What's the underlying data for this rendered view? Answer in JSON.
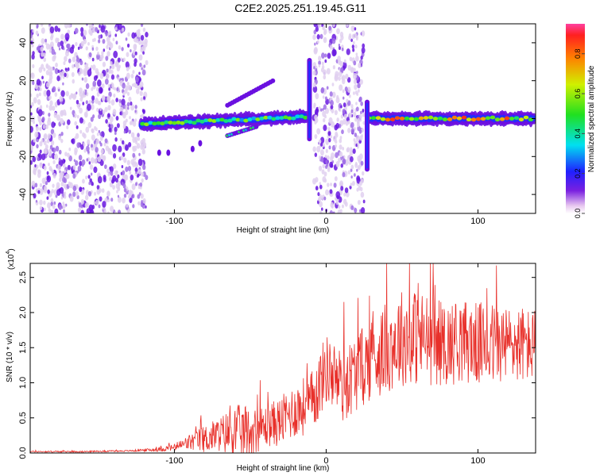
{
  "title": "C2E2.2025.251.19.45.G11",
  "colors": {
    "snr_line": "#e8302a",
    "spectro_low": "#d9c6ee",
    "spectro_mid": "#6a1ee0",
    "spectro_cyan": "#00e0e6",
    "spectro_green": "#30e040",
    "spectro_peak": "#ff2020"
  },
  "chart_data": [
    {
      "type": "heatmap",
      "xlabel": "Height of straight line (km)",
      "ylabel": "Frequency (Hz)",
      "xlim": [
        -195,
        138
      ],
      "ylim": [
        -50,
        50
      ],
      "xticks": [
        -100,
        0,
        100
      ],
      "yticks": [
        -40,
        -20,
        0,
        20,
        40
      ],
      "colorbar": {
        "label": "Normalized spectral amplitude",
        "range": [
          0.0,
          0.95
        ],
        "ticks": [
          0.0,
          0.2,
          0.4,
          0.6,
          0.8
        ],
        "tick_labels": [
          "0.0",
          "0.2",
          "0.4",
          "0.6",
          "0.8"
        ]
      },
      "features": [
        {
          "name": "broadband noise region",
          "x_range": [
            -195,
            -118
          ],
          "freq_range": [
            -50,
            50
          ],
          "amplitude": 0.12
        },
        {
          "name": "broadband noise region",
          "x_range": [
            -8,
            25
          ],
          "freq_range": [
            -50,
            50
          ],
          "amplitude": 0.12
        },
        {
          "name": "main carrier trace",
          "x_range": [
            -122,
            -13
          ],
          "freq_start": -3,
          "freq_end": 1,
          "amplitude": 0.45
        },
        {
          "name": "main carrier trace",
          "x_range": [
            27,
            138
          ],
          "freq": 0,
          "amplitude": 0.9
        },
        {
          "name": "upper branch",
          "x_range": [
            -65,
            -35
          ],
          "freq_start": 7,
          "freq_end": 20,
          "amplitude": 0.15
        },
        {
          "name": "lower branch",
          "x_range": [
            -65,
            -45
          ],
          "freq_start": -9,
          "freq_end": -4,
          "amplitude": 0.35
        },
        {
          "name": "spike",
          "x": -11,
          "freq_range": [
            -12,
            32
          ],
          "amplitude": 0.2
        },
        {
          "name": "spike",
          "x": 27,
          "freq_range": [
            -28,
            10
          ],
          "amplitude": 0.2
        }
      ]
    },
    {
      "type": "line",
      "xlabel": "Height of straight line (km)",
      "ylabel": "SNR (10 * v/v)",
      "y_scale_label": "(x10",
      "y_scale_exponent": "4",
      "xlim": [
        -195,
        138
      ],
      "ylim": [
        0.0,
        2.7
      ],
      "xticks": [
        -100,
        0,
        100
      ],
      "yticks": [
        0.0,
        0.5,
        1.0,
        1.5,
        2.0,
        2.5
      ],
      "ytick_labels": [
        "0.0",
        "0.5",
        "1.0",
        "1.5",
        "2.0",
        "2.5"
      ],
      "series": [
        {
          "name": "SNR",
          "x": [
            -195,
            -160,
            -130,
            -110,
            -100,
            -90,
            -80,
            -70,
            -60,
            -50,
            -40,
            -30,
            -20,
            -10,
            -5,
            0,
            5,
            10,
            20,
            30,
            40,
            50,
            60,
            70,
            80,
            90,
            100,
            110,
            120,
            130,
            138
          ],
          "y_mean": [
            0.02,
            0.02,
            0.03,
            0.05,
            0.08,
            0.15,
            0.2,
            0.27,
            0.3,
            0.3,
            0.38,
            0.45,
            0.62,
            0.7,
            0.95,
            1.2,
            1.1,
            0.95,
            1.15,
            1.35,
            1.5,
            1.65,
            1.65,
            1.6,
            1.55,
            1.6,
            1.55,
            1.55,
            1.55,
            1.55,
            1.5
          ],
          "y_spread": [
            0.01,
            0.01,
            0.01,
            0.03,
            0.05,
            0.12,
            0.2,
            0.25,
            0.4,
            0.35,
            0.3,
            0.35,
            0.4,
            0.45,
            0.5,
            0.5,
            0.5,
            0.55,
            0.55,
            0.6,
            0.65,
            0.7,
            0.7,
            0.65,
            0.6,
            0.6,
            0.6,
            0.6,
            0.55,
            0.55,
            0.5
          ]
        }
      ]
    }
  ]
}
